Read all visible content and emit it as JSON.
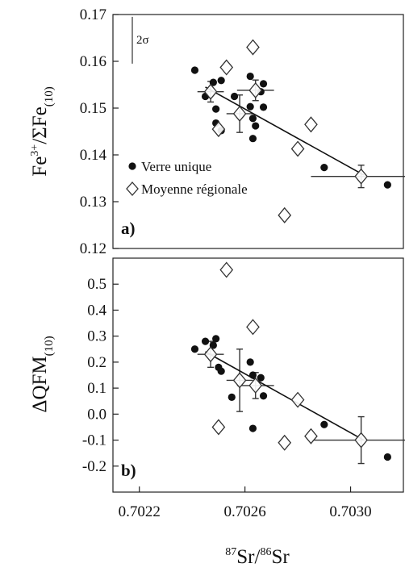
{
  "chart_data": [
    {
      "panel": "a)",
      "type": "scatter",
      "ylabel_main": "Fe",
      "ylabel_sup": "3+",
      "ylabel_mid": "/ΣFe",
      "ylabel_sub": "(10)",
      "ylim": [
        0.12,
        0.17
      ],
      "yticks": [
        "0.12",
        "0.13",
        "0.14",
        "0.15",
        "0.16",
        "0.17"
      ],
      "xlim": [
        0.7021,
        0.7032
      ],
      "legend": {
        "position": "lower-left",
        "entries": [
          "Verre unique",
          "Moyenne régionale"
        ]
      },
      "error_scale": {
        "label": "2σ",
        "ymin": 0.1595,
        "ymax": 0.1695
      },
      "series": [
        {
          "name": "Verre unique",
          "marker": "filled-circle",
          "points": [
            [
              0.70241,
              0.1581
            ],
            [
              0.70245,
              0.1525
            ],
            [
              0.70248,
              0.1555
            ],
            [
              0.70249,
              0.1498
            ],
            [
              0.70249,
              0.1468
            ],
            [
              0.70251,
              0.1452
            ],
            [
              0.70251,
              0.1559
            ],
            [
              0.70256,
              0.1525
            ],
            [
              0.70262,
              0.1568
            ],
            [
              0.70262,
              0.1503
            ],
            [
              0.70263,
              0.1478
            ],
            [
              0.70263,
              0.1435
            ],
            [
              0.70264,
              0.1462
            ],
            [
              0.70266,
              0.1535
            ],
            [
              0.70267,
              0.1552
            ],
            [
              0.70267,
              0.1502
            ],
            [
              0.7029,
              0.1373
            ],
            [
              0.70314,
              0.1336
            ]
          ]
        },
        {
          "name": "Moyenne régionale",
          "marker": "open-diamond",
          "points": [
            {
              "x": 0.70247,
              "y": 0.1535,
              "xerr": 5e-05,
              "yerr": 0.0022
            },
            {
              "x": 0.7025,
              "y": 0.1455
            },
            {
              "x": 0.70253,
              "y": 0.1587
            },
            {
              "x": 0.70258,
              "y": 0.1488,
              "xerr": 5e-05,
              "yerr": 0.004
            },
            {
              "x": 0.70263,
              "y": 0.163
            },
            {
              "x": 0.70264,
              "y": 0.1538,
              "xerr": 7e-05,
              "yerr": 0.0022
            },
            {
              "x": 0.7028,
              "y": 0.1413
            },
            {
              "x": 0.70275,
              "y": 0.1271
            },
            {
              "x": 0.70285,
              "y": 0.1465
            },
            {
              "x": 0.70304,
              "y": 0.1354,
              "xerr": 0.00019,
              "yerr": 0.0024
            }
          ]
        }
      ],
      "trend_line": [
        [
          0.70245,
          0.1545
        ],
        [
          0.70305,
          0.1357
        ]
      ]
    },
    {
      "panel": "b)",
      "type": "scatter",
      "ylabel_main": "ΔQFM",
      "ylabel_sub": "(10)",
      "ylim": [
        -0.3,
        0.6
      ],
      "yticks": [
        "-0.2",
        "-0.1",
        "0.0",
        "0.1",
        "0.2",
        "0.3",
        "0.4",
        "0.5"
      ],
      "xlim": [
        0.7021,
        0.7032
      ],
      "xticks": [
        0.7022,
        0.7026,
        0.703
      ],
      "xtick_labels": [
        "0.7022",
        "0.7026",
        "0.7030"
      ],
      "xlabel_sup1": "87",
      "xlabel_main1": "Sr/",
      "xlabel_sup2": "86",
      "xlabel_main2": "Sr",
      "series": [
        {
          "name": "Verre unique",
          "marker": "filled-circle",
          "points": [
            [
              0.70241,
              0.25
            ],
            [
              0.70245,
              0.28
            ],
            [
              0.70248,
              0.265
            ],
            [
              0.70249,
              0.29
            ],
            [
              0.7025,
              0.18
            ],
            [
              0.70251,
              0.165
            ],
            [
              0.70255,
              0.065
            ],
            [
              0.70262,
              0.2
            ],
            [
              0.70263,
              0.15
            ],
            [
              0.70263,
              -0.055
            ],
            [
              0.70266,
              0.14
            ],
            [
              0.70267,
              0.07
            ],
            [
              0.7029,
              -0.04
            ],
            [
              0.70314,
              -0.165
            ]
          ]
        },
        {
          "name": "Moyenne régionale",
          "marker": "open-diamond",
          "points": [
            {
              "x": 0.70247,
              "y": 0.23,
              "xerr": 5e-05,
              "yerr": 0.05
            },
            {
              "x": 0.7025,
              "y": -0.05
            },
            {
              "x": 0.70253,
              "y": 0.555
            },
            {
              "x": 0.70258,
              "y": 0.13,
              "xerr": 5e-05,
              "yerr": 0.12
            },
            {
              "x": 0.70263,
              "y": 0.335
            },
            {
              "x": 0.70264,
              "y": 0.11,
              "xerr": 7e-05,
              "yerr": 0.05
            },
            {
              "x": 0.70275,
              "y": -0.11
            },
            {
              "x": 0.7028,
              "y": 0.055
            },
            {
              "x": 0.70285,
              "y": -0.085
            },
            {
              "x": 0.70304,
              "y": -0.1,
              "xerr": 0.00019,
              "yerr": 0.09
            }
          ]
        }
      ],
      "trend_line": [
        [
          0.70245,
          0.24
        ],
        [
          0.70305,
          -0.1
        ]
      ]
    }
  ]
}
